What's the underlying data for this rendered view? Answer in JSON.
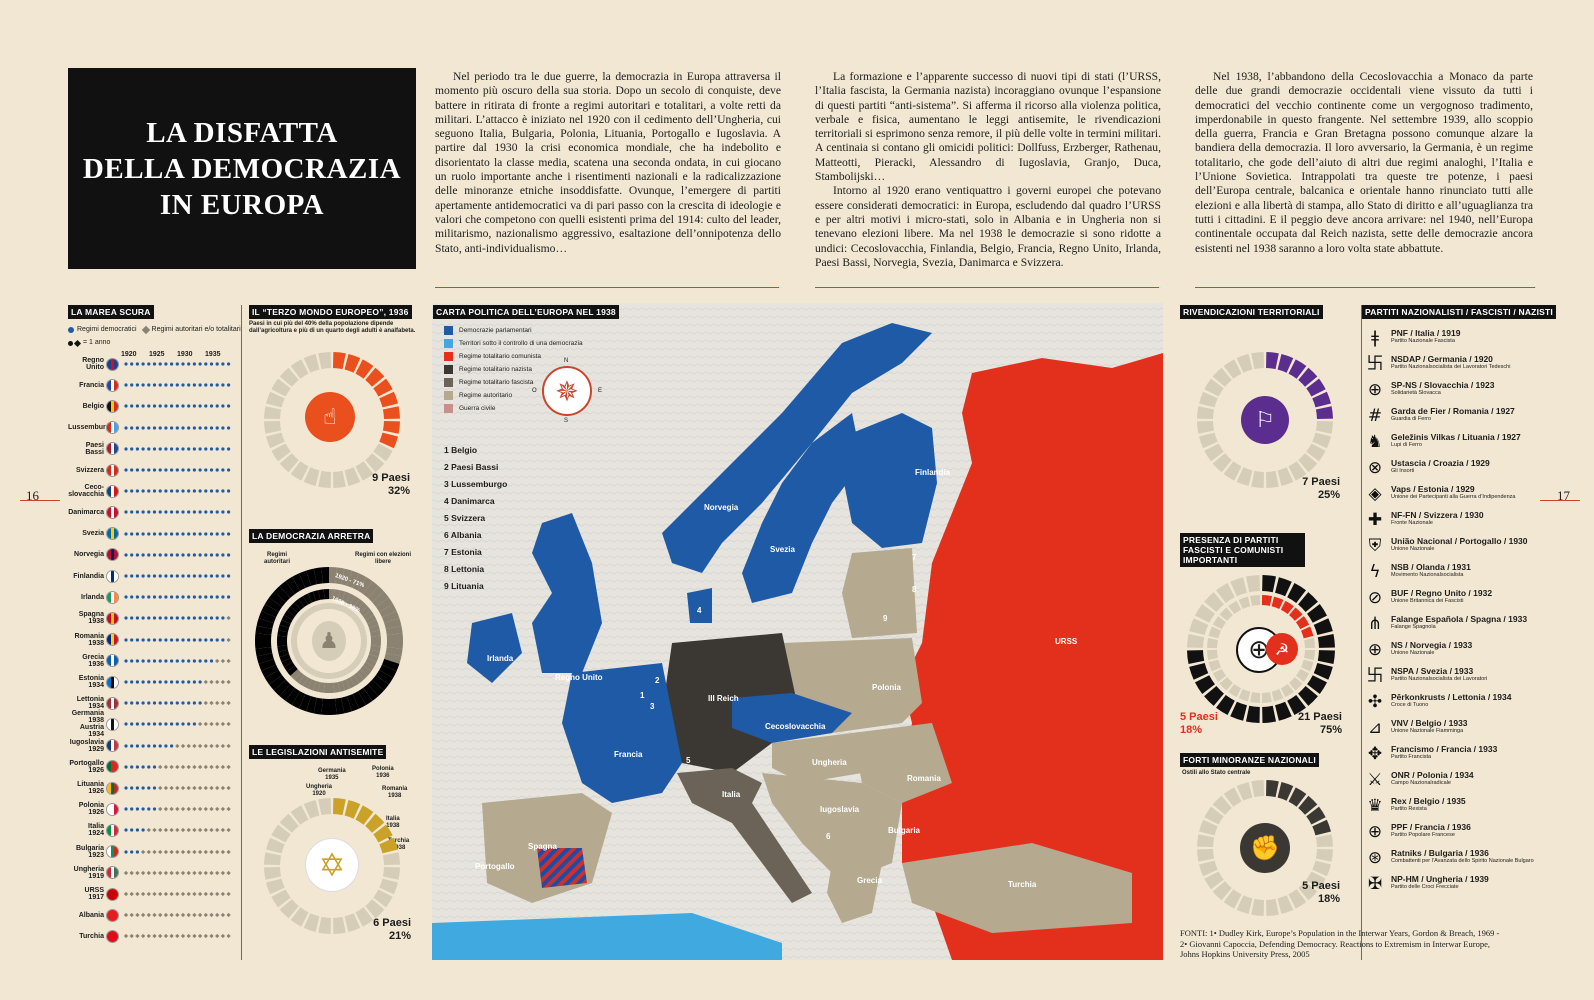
{
  "page": {
    "left_number": "16",
    "right_number": "17"
  },
  "title": {
    "line1": "LA DISFATTA",
    "line2": "DELLA DEMOCRAZIA",
    "line3": "IN EUROPA"
  },
  "intro": {
    "col1": "Nel periodo tra le due guerre, la democrazia in Europa attraversa il momento più oscuro della sua storia. Dopo un secolo di conquiste, deve battere in ritirata di fronte a regimi autoritari e totalitari, a volte retti da militari. L’attacco è iniziato nel 1920 con il cedimento dell’Ungheria, cui seguono Italia, Bulgaria, Polonia, Lituania, Portogallo e Iugoslavia. A partire dal 1930 la crisi economica mondiale, che ha indebolito e disorientato la classe media, scatena una seconda ondata, in cui giocano un ruolo importante anche i risentimenti nazionali e la radicalizzazione delle minoranze etniche insoddisfatte. Ovunque, l’emergere di partiti apertamente antidemocratici va di pari passo con la crescita di ideologie e valori che competono con quelli esistenti prima del 1914: culto del leader, militarismo, nazionalismo aggressivo, esaltazione dell’onnipotenza dello Stato, anti-individualismo…",
    "col2_p1": "La formazione e l’apparente successo di nuovi tipi di stati (l’URSS, l’Italia fascista, la Germania nazista) incoraggiano ovunque l’espansione di questi partiti “anti-sistema”. Si afferma il ricorso alla violenza politica, verbale e fisica, aumentano le leggi antisemite, le rivendicazioni territoriali si esprimono senza remore, il più delle volte in termini militari. A centinaia si contano gli omicidi politici: Dollfuss, Erzberger, Rathenau, Matteotti, Pieracki, Alessandro di Iugoslavia, Granjo, Duca, Stambolijski…",
    "col2_p2": "Intorno al 1920 erano ventiquattro i governi europei che potevano essere considerati democratici: in Europa, escludendo dal quadro l’URSS e per altri motivi i micro-stati, solo in Albania e in Ungheria non si tenevano elezioni libere. Ma nel 1938 le democrazie si sono ridotte a undici: Cecoslovacchia, Finlandia, Belgio, Francia, Regno Unito, Irlanda, Paesi Bassi, Norvegia, Svezia, Danimarca e Svizzera.",
    "col3": "Nel 1938, l’abbandono della Cecoslovacchia a Monaco da parte delle due grandi democrazie occidentali viene vissuto da tutti i democratici del vecchio continente come un vergognoso tradimento, imperdonabile in questo frangente. Nel settembre 1939, allo scoppio della guerra, Francia e Gran Bretagna possono comunque alzare la bandiera della democrazia. Il loro avversario, la Germania, è un regime totalitario, che gode dell’aiuto di altri due regimi analoghi, l’Italia e l’Unione Sovietica. Intrappolati tra queste tre potenze, i paesi dell’Europa centrale, balcanica e orientale hanno rinunciato tutti alle elezioni e alla libertà di stampa, allo Stato di diritto e all’uguaglianza tra tutti i cittadini. E il peggio deve ancora arrivare: nel 1940, nell’Europa continentale occupata dal Reich nazista, sette delle democrazie ancora esistenti nel 1938 saranno a loro volta state abbattute."
  },
  "marea": {
    "label": "LA MAREA SCURA",
    "legend_demo": "Regimi democratici",
    "legend_auth": "Regimi autoritari e/o totalitari",
    "legend_year": "= 1 anno",
    "years": [
      "1920",
      "1925",
      "1930",
      "1935"
    ],
    "colors": {
      "demo": "#1f5aa6",
      "auth": "#8b8271"
    },
    "countries": [
      {
        "name": "Regno Unito",
        "flag": [
          "#1f3f8a",
          "#c8102e",
          "#1f3f8a"
        ],
        "demo_years": 19
      },
      {
        "name": "Francia",
        "flag": [
          "#1f4aa8",
          "#ffffff",
          "#d52b1e"
        ],
        "demo_years": 19
      },
      {
        "name": "Belgio",
        "flag": [
          "#111111",
          "#f6c900",
          "#d52b1e"
        ],
        "demo_years": 19
      },
      {
        "name": "Lussemburgo",
        "flag": [
          "#d52b1e",
          "#ffffff",
          "#4aa3e0"
        ],
        "demo_years": 19
      },
      {
        "name": "Paesi Bassi",
        "flag": [
          "#ae1c28",
          "#ffffff",
          "#21468b"
        ],
        "demo_years": 19
      },
      {
        "name": "Svizzera",
        "flag": [
          "#d52b1e",
          "#ffffff",
          "#d52b1e"
        ],
        "demo_years": 19
      },
      {
        "name": "Ceco-\nslovacchia",
        "flag": [
          "#11457e",
          "#ffffff",
          "#d7141a"
        ],
        "demo_years": 19
      },
      {
        "name": "Danimarca",
        "flag": [
          "#c8102e",
          "#ffffff",
          "#c8102e"
        ],
        "demo_years": 19
      },
      {
        "name": "Svezia",
        "flag": [
          "#006aa7",
          "#fecc00",
          "#006aa7"
        ],
        "demo_years": 19
      },
      {
        "name": "Norvegia",
        "flag": [
          "#ba0c2f",
          "#00205b",
          "#ba0c2f"
        ],
        "demo_years": 19
      },
      {
        "name": "Finlandia",
        "flag": [
          "#ffffff",
          "#002f6c",
          "#ffffff"
        ],
        "demo_years": 19
      },
      {
        "name": "Irlanda",
        "flag": [
          "#169b62",
          "#ffffff",
          "#ff883e"
        ],
        "demo_years": 19
      },
      {
        "name": "Spagna\n1938",
        "flag": [
          "#c60b1e",
          "#ffc400",
          "#c60b1e"
        ],
        "demo_years": 18
      },
      {
        "name": "Romania\n1938",
        "flag": [
          "#002b7f",
          "#fcd116",
          "#ce1126"
        ],
        "demo_years": 18
      },
      {
        "name": "Grecia\n1936",
        "flag": [
          "#0d5eaf",
          "#ffffff",
          "#0d5eaf"
        ],
        "demo_years": 16
      },
      {
        "name": "Estonia\n1934",
        "flag": [
          "#0072ce",
          "#000000",
          "#ffffff"
        ],
        "demo_years": 14
      },
      {
        "name": "Lettonia\n1934",
        "flag": [
          "#9e3039",
          "#ffffff",
          "#9e3039"
        ],
        "demo_years": 14
      },
      {
        "name": "Germania 1938\nAustria 1934",
        "flag": [
          "#ffffff",
          "#111111",
          "#ffffff"
        ],
        "demo_years": 13
      },
      {
        "name": "Iugoslavia\n1929",
        "flag": [
          "#0c4076",
          "#ffffff",
          "#c6363c"
        ],
        "demo_years": 9
      },
      {
        "name": "Portogallo\n1926",
        "flag": [
          "#046a38",
          "#da291c",
          "#da291c"
        ],
        "demo_years": 6
      },
      {
        "name": "Lituania\n1926",
        "flag": [
          "#fdb913",
          "#006a44",
          "#c1272d"
        ],
        "demo_years": 6
      },
      {
        "name": "Polonia\n1926",
        "flag": [
          "#ffffff",
          "#ffffff",
          "#dc143c"
        ],
        "demo_years": 6
      },
      {
        "name": "Italia\n1924",
        "flag": [
          "#009246",
          "#ffffff",
          "#ce2b37"
        ],
        "demo_years": 4
      },
      {
        "name": "Bulgaria\n1923",
        "flag": [
          "#ffffff",
          "#00966e",
          "#d62612"
        ],
        "demo_years": 3
      },
      {
        "name": "Ungheria\n1919",
        "flag": [
          "#ce2939",
          "#ffffff",
          "#477050"
        ],
        "demo_years": 0
      },
      {
        "name": "URSS\n1917",
        "flag": [
          "#cc0000",
          "#cc0000",
          "#cc0000"
        ],
        "demo_years": 0
      },
      {
        "name": "Albania",
        "flag": [
          "#e41e20",
          "#e41e20",
          "#e41e20"
        ],
        "demo_years": 0
      },
      {
        "name": "Turchia",
        "flag": [
          "#e30a17",
          "#e30a17",
          "#e30a17"
        ],
        "demo_years": 0
      }
    ]
  },
  "terzo_mondo": {
    "label": "IL “TERZO MONDO EUROPEO”, 1936",
    "desc": "Paesi in cui più del 40% della popolazione dipende dall’agricoltura e più di un quarto degli adulti è analfabeta.",
    "value_label": "9 Paesi",
    "percent": "32%",
    "fraction": 0.32,
    "color": "#e9501d"
  },
  "democrazia_arretra": {
    "label": "LA DEMOCRAZIA ARRETRA",
    "left_label": "Regimi autoritari",
    "right_label": "Regimi con elezioni libere",
    "outer": "1920 - 71%",
    "inner": "1938 - 38%",
    "outer_fraction": 0.71,
    "inner_fraction": 0.38
  },
  "antisemite": {
    "label": "LE LEGISLAZIONI ANTISEMITE",
    "items": [
      "Germania\n1935",
      "Polonia\n1936",
      "Ungheria\n1920",
      "Romania\n1938",
      "Italia\n1938",
      "Turchia\n1938"
    ],
    "value_label": "6 Paesi",
    "percent": "21%",
    "fraction": 0.21,
    "color": "#c9a227"
  },
  "map": {
    "label": "CARTA POLITICA DELL’EUROPA NEL 1938",
    "legend": [
      {
        "label": "Democrazie parlamentari",
        "color": "#1f5aa6"
      },
      {
        "label": "Territori sotto il controllo di una democrazia",
        "color": "#3fa9e0"
      },
      {
        "label": "Regime totalitario comunista",
        "color": "#e3301c"
      },
      {
        "label": "Regime totalitario nazista",
        "color": "#3b3733"
      },
      {
        "label": "Regime totalitario fascista",
        "color": "#6b6358"
      },
      {
        "label": "Regime autoritario",
        "color": "#b5a98f"
      },
      {
        "label": "Guerra civile",
        "color": "#c98f8a"
      }
    ],
    "numbers": [
      "1 Belgio",
      "2 Paesi Bassi",
      "3 Lussemburgo",
      "4 Danimarca",
      "5 Svizzera",
      "6 Albania",
      "7 Estonia",
      "8 Lettonia",
      "9 Lituania"
    ],
    "compass": [
      "N",
      "E",
      "S",
      "O"
    ],
    "place_labels": [
      "Irlanda",
      "Regno Unito",
      "Norvegia",
      "Svezia",
      "Finlandia",
      "URSS",
      "Polonia",
      "III Reich",
      "Cecoslovacchia",
      "Francia",
      "Ungheria",
      "Romania",
      "Iugoslavia",
      "Bulgaria",
      "Italia",
      "Spagna",
      "Portogallo",
      "Grecia",
      "Turchia"
    ],
    "map_numbers": [
      "1",
      "2",
      "3",
      "4",
      "5",
      "6",
      "7",
      "8",
      "9"
    ]
  },
  "rivendicazioni": {
    "label": "RIVENDICAZIONI TERRITORIALI",
    "value_label": "7 Paesi",
    "percent": "25%",
    "fraction": 0.25,
    "color": "#5b2d8e"
  },
  "presenza": {
    "label": "PRESENZA DI PARTITI FASCISTI E COMUNISTI IMPORTANTI",
    "left_value": "5 Paesi",
    "left_percent": "18%",
    "right_value": "21 Paesi",
    "right_percent": "75%",
    "red_fraction": 0.18,
    "black_fraction": 0.75
  },
  "minoranze": {
    "label": "FORTI MINORANZE NAZIONALI",
    "desc": "Ostili allo Stato centrale",
    "value_label": "5 Paesi",
    "percent": "18%",
    "fraction": 0.18,
    "color": "#3b3733"
  },
  "partiti": {
    "label": "PARTITI NAZIONALISTI / FASCISTI / NAZISTI",
    "items": [
      {
        "name": "PNF / Italia / 1919",
        "desc": "Partito Nazionale Fascista",
        "icon": "fasces-icon",
        "glyph": "ǂ"
      },
      {
        "name": "NSDAP / Germania / 1920",
        "desc": "Partito Nazionalsocialista dei Lavoratori Tedeschi",
        "icon": "swastika-icon",
        "glyph": "卐"
      },
      {
        "name": "SP-NS / Slovacchia / 1923",
        "desc": "Solidarietà Slovacca",
        "icon": "cross-circle-icon",
        "glyph": "⊕"
      },
      {
        "name": "Garda de Fier / Romania / 1927",
        "desc": "Guardia di Ferro",
        "icon": "iron-guard-icon",
        "glyph": "#"
      },
      {
        "name": "Geležinis Vilkas / Lituania / 1927",
        "desc": "Lupi di Ferro",
        "icon": "wolf-icon",
        "glyph": "♞"
      },
      {
        "name": "Ustascia / Croazia / 1929",
        "desc": "Gli Insorti",
        "icon": "ustasha-icon",
        "glyph": "⊗"
      },
      {
        "name": "Vaps / Estonia / 1929",
        "desc": "Unione dei Partecipanti alla Guerra d’Indipendenza",
        "icon": "vaps-icon",
        "glyph": "◈"
      },
      {
        "name": "NF-FN / Svizzera / 1930",
        "desc": "Fronte Nazionale",
        "icon": "swiss-cross-icon",
        "glyph": "✚"
      },
      {
        "name": "União Nacional / Portogallo / 1930",
        "desc": "Unione Nazionale",
        "icon": "shield-cross-icon",
        "glyph": "⛨"
      },
      {
        "name": "NSB / Olanda / 1931",
        "desc": "Movimento Nazionalsocialista",
        "icon": "wolfsangel-icon",
        "glyph": "ϟ"
      },
      {
        "name": "BUF / Regno Unito / 1932",
        "desc": "Unione Britannica dei Fascisti",
        "icon": "bolt-circle-icon",
        "glyph": "⊘"
      },
      {
        "name": "Falange Española / Spagna / 1933",
        "desc": "Falange Spagnola",
        "icon": "yoke-arrows-icon",
        "glyph": "⋔"
      },
      {
        "name": "NS / Norvegia / 1933",
        "desc": "Unione Nazionale",
        "icon": "sun-cross-icon",
        "glyph": "⊕"
      },
      {
        "name": "NSPA / Svezia / 1933",
        "desc": "Partito Nazionalsocialista dei Lavoratori",
        "icon": "swastika-icon",
        "glyph": "卐"
      },
      {
        "name": "Pērkonkrusts / Lettonia / 1934",
        "desc": "Croce di Tuono",
        "icon": "thunder-cross-icon",
        "glyph": "✣"
      },
      {
        "name": "VNV / Belgio / 1933",
        "desc": "Unione Nazionale Fiamminga",
        "icon": "triangle-icon",
        "glyph": "⊿"
      },
      {
        "name": "Francismo / Francia / 1933",
        "desc": "Partito Francista",
        "icon": "francism-icon",
        "glyph": "✥"
      },
      {
        "name": "ONR / Polonia / 1934",
        "desc": "Campo Nazionalradicale",
        "icon": "sword-arm-icon",
        "glyph": "⚔"
      },
      {
        "name": "Rex / Belgio / 1935",
        "desc": "Partito Rexista",
        "icon": "crown-icon",
        "glyph": "♛"
      },
      {
        "name": "PPF / Francia / 1936",
        "desc": "Partito Popolare Francese",
        "icon": "ppf-icon",
        "glyph": "⊕"
      },
      {
        "name": "Ratniks / Bulgaria / 1936",
        "desc": "Combattenti per l’Avanzata dello Spirito Nazionale Bulgaro",
        "icon": "ratnik-icon",
        "glyph": "⊛"
      },
      {
        "name": "NP-HM / Ungheria / 1939",
        "desc": "Partito delle Croci Frecciate",
        "icon": "arrow-cross-icon",
        "glyph": "✠"
      }
    ]
  },
  "sources": {
    "text": "FONTI: 1• Dudley Kirk, Europe’s Population in the Interwar Years, Gordon & Breach, 1969 - 2• Giovanni Capoccia, Defending Democracy. Reactions to Extremism in Interwar Europe, Johns Hopkins University Press, 2005"
  }
}
